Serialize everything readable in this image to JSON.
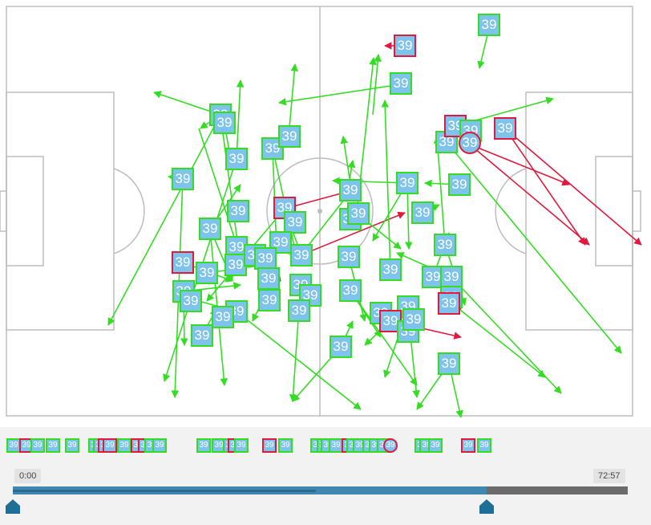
{
  "player_number": "39",
  "colors": {
    "pitch_line": "#bdbdbd",
    "pass_success": "#33dd22",
    "pass_fail": "#e0193d",
    "marker_fill": "#7ec3ec",
    "timeline_fill": "#3f86b0"
  },
  "timeline": {
    "start_label": "0:00",
    "end_label": "72:57",
    "progress_fraction": 0.77
  },
  "icons": {
    "handle": "slider-handle-icon"
  }
}
